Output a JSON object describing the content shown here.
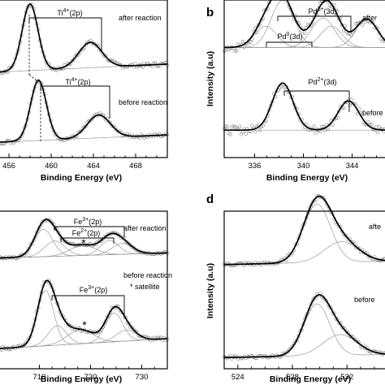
{
  "chart_data": [
    {
      "panel": "a",
      "type": "line",
      "xlabel": "Binding Energy (eV)",
      "ylabel": "",
      "xticks": [
        456,
        460,
        464,
        468
      ],
      "xlim": [
        455,
        471
      ],
      "reversed": false,
      "grid": false,
      "subplots": [
        {
          "condition_label": "after reaction",
          "annotation": {
            "main": "Ti",
            "sup": "4+",
            "tail": "(2p)"
          },
          "bracket": [
            458.0,
            463.7
          ],
          "peaks": [
            {
              "center": 458.0,
              "height": 1.0,
              "width": 0.75
            },
            {
              "center": 463.7,
              "height": 0.38,
              "width": 1.1
            }
          ],
          "baseline": [
            0.04,
            0.16
          ]
        },
        {
          "condition_label": "before reaction",
          "annotation": {
            "main": "Ti",
            "sup": "4+",
            "tail": "(2p)"
          },
          "bracket": [
            458.8,
            464.5
          ],
          "peaks": [
            {
              "center": 458.8,
              "height": 1.0,
              "width": 0.75
            },
            {
              "center": 464.5,
              "height": 0.38,
              "width": 1.1
            }
          ],
          "baseline": [
            0.04,
            0.16
          ]
        }
      ]
    },
    {
      "panel": "b",
      "type": "line",
      "xlabel": "Binding Energy (eV)",
      "ylabel": "Intensity (a.u)",
      "xticks": [
        336,
        340,
        344
      ],
      "xlim": [
        333.5,
        347.5
      ],
      "reversed": false,
      "grid": false,
      "subplots": [
        {
          "condition_label": "after",
          "annotations": [
            {
              "main": "Pd",
              "sup": "2+",
              "tail": "(3d)"
            },
            {
              "main": "Pd",
              "sup": "0",
              "tail": "(3d)"
            }
          ],
          "peaks": [
            {
              "center": 338.3,
              "height": 1.0,
              "width": 0.95
            },
            {
              "center": 336.9,
              "height": 0.45,
              "width": 0.9
            },
            {
              "center": 341.6,
              "height": 0.62,
              "width": 0.95
            },
            {
              "center": 342.3,
              "height": 0.45,
              "width": 0.9
            },
            {
              "center": 345.2,
              "height": 0.6,
              "width": 0.9
            }
          ],
          "baseline": [
            0.2,
            0.2
          ]
        },
        {
          "condition_label": "before",
          "annotation": {
            "main": "Pd",
            "sup": "2+",
            "tail": "(3d)"
          },
          "peaks": [
            {
              "center": 338.3,
              "height": 1.0,
              "width": 0.85
            },
            {
              "center": 343.7,
              "height": 0.62,
              "width": 0.85
            }
          ],
          "baseline": [
            0.1,
            0.1
          ]
        }
      ]
    },
    {
      "panel": "c",
      "type": "line",
      "xlabel": "Binding Energy (eV)",
      "ylabel": "",
      "xticks": [
        710,
        720,
        730
      ],
      "xlim": [
        702,
        735
      ],
      "reversed": false,
      "grid": false,
      "subplots": [
        {
          "condition_label": "after reaction",
          "annotations": [
            {
              "main": "Fe",
              "sup": "3+",
              "tail": "(2p)"
            },
            {
              "main": "Fe",
              "sup": "2+",
              "tail": "(2p)"
            },
            {
              "main": "*",
              "sup": "",
              "tail": ""
            }
          ],
          "peaks": [
            {
              "center": 710.8,
              "height": 0.8,
              "width": 1.8
            },
            {
              "center": 713.0,
              "height": 0.45,
              "width": 2.0
            },
            {
              "center": 718.5,
              "height": 0.3,
              "width": 2.5
            },
            {
              "center": 723.7,
              "height": 0.42,
              "width": 1.8
            },
            {
              "center": 726.2,
              "height": 0.32,
              "width": 2.0
            }
          ],
          "baseline": [
            0.15,
            0.3
          ]
        },
        {
          "condition_label": "before reaction",
          "legend_note": "* satellite",
          "annotations": [
            {
              "main": "Fe",
              "sup": "3+",
              "tail": "(2p)"
            },
            {
              "main": "*",
              "sup": "",
              "tail": ""
            }
          ],
          "peaks": [
            {
              "center": 711.2,
              "height": 1.0,
              "width": 1.6
            },
            {
              "center": 713.5,
              "height": 0.35,
              "width": 1.8
            },
            {
              "center": 718.0,
              "height": 0.25,
              "width": 2.6
            },
            {
              "center": 724.6,
              "height": 0.52,
              "width": 1.7
            },
            {
              "center": 727.0,
              "height": 0.2,
              "width": 2.0
            }
          ],
          "baseline": [
            0.1,
            0.28
          ]
        }
      ]
    },
    {
      "panel": "d",
      "type": "line",
      "xlabel": "Binding Energy (eV)",
      "ylabel": "Intensity (a.u)",
      "xticks": [
        524,
        528,
        532
      ],
      "xlim": [
        523,
        535.5
      ],
      "reversed": false,
      "grid": false,
      "subplots": [
        {
          "condition_label": "afte",
          "peaks": [
            {
              "center": 529.8,
              "height": 1.0,
              "width": 1.0
            },
            {
              "center": 531.6,
              "height": 0.35,
              "width": 1.25
            }
          ],
          "baseline": [
            0.06,
            0.12
          ]
        },
        {
          "condition_label": "before",
          "peaks": [
            {
              "center": 529.8,
              "height": 1.0,
              "width": 0.95
            },
            {
              "center": 531.5,
              "height": 0.4,
              "width": 1.25
            }
          ],
          "baseline": [
            0.06,
            0.12
          ]
        }
      ]
    }
  ]
}
